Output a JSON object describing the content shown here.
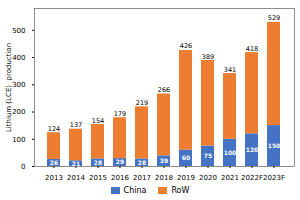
{
  "chart_data": {
    "type": "bar",
    "stacked": true,
    "categories": [
      "2013",
      "2014",
      "2015",
      "2016",
      "2017",
      "2018",
      "2019",
      "2020",
      "2021",
      "2022F",
      "2023F"
    ],
    "series": [
      {
        "name": "China",
        "color": "#4472C4",
        "values": [
          26,
          21,
          28,
          29,
          28,
          39,
          60,
          75,
          100,
          120,
          150
        ],
        "data_labels": true
      },
      {
        "name": "RoW",
        "color": "#ED7D31",
        "values": [
          98,
          116,
          126,
          150,
          191,
          227,
          366,
          314,
          241,
          298,
          379
        ]
      }
    ],
    "totals": [
      124,
      137,
      154,
      179,
      219,
      266,
      426,
      389,
      341,
      418,
      529
    ],
    "ylabel": "Lithium (LCE)  production",
    "ylim": [
      0,
      580
    ],
    "yticks": [
      0,
      100,
      200,
      300,
      400,
      500
    ],
    "legend": "bottom",
    "grid": false
  }
}
